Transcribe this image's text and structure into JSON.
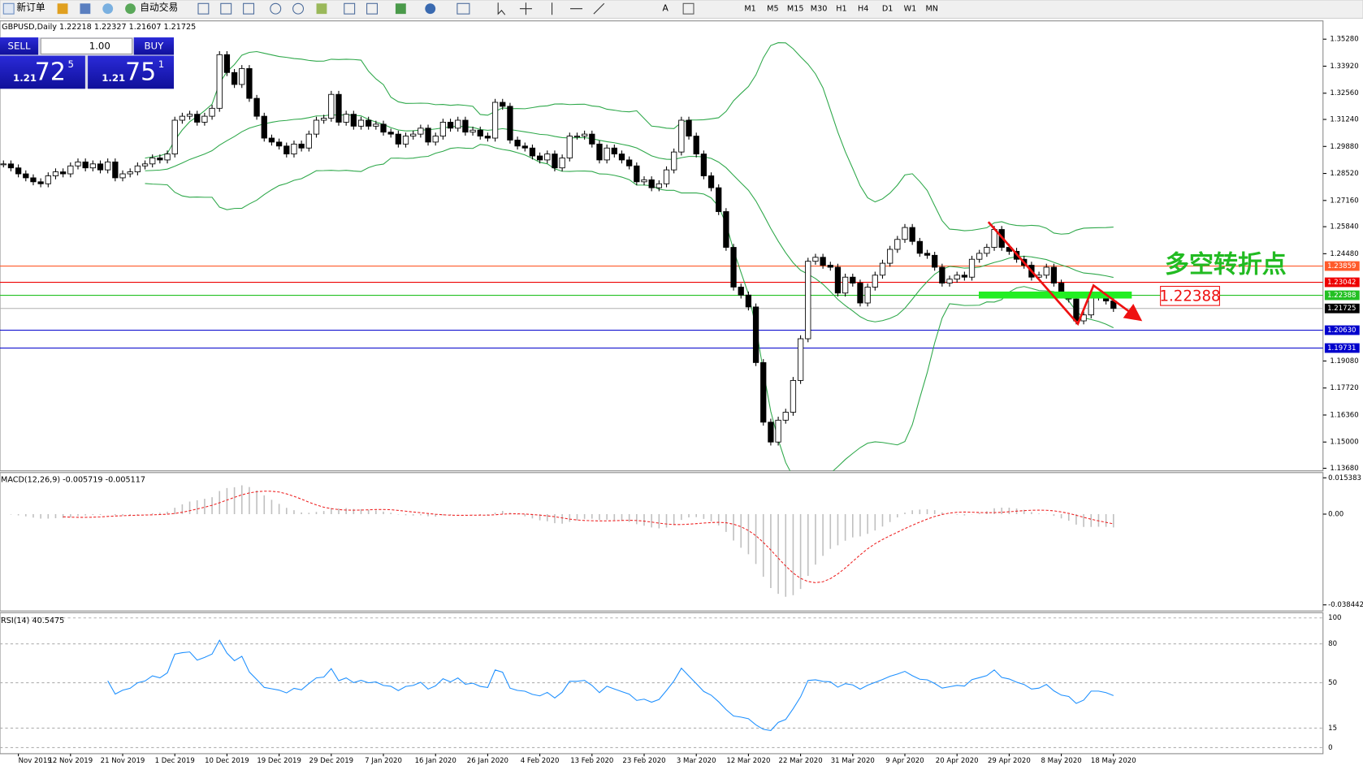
{
  "toolbar": {
    "new_order": "新订单",
    "auto_trading": "自动交易",
    "timeframes": [
      "M1",
      "M5",
      "M15",
      "M30",
      "H1",
      "H4",
      "D1",
      "W1",
      "MN"
    ]
  },
  "trade_panel": {
    "sell": "SELL",
    "buy": "BUY",
    "lot": "1.00",
    "sell_price": {
      "prefix": "1.21",
      "main": "72",
      "sup": "5"
    },
    "buy_price": {
      "prefix": "1.21",
      "main": "75",
      "sup": "1"
    }
  },
  "chart": {
    "label": "GBPUSD,Daily 1.22218 1.22327 1.21607 1.21725",
    "ylim": [
      1.1355,
      1.362
    ],
    "yticks": [
      {
        "value": 1.3528,
        "label": "1.35280"
      },
      {
        "value": 1.3392,
        "label": "1.33920"
      },
      {
        "value": 1.3256,
        "label": "1.32560"
      },
      {
        "value": 1.3124,
        "label": "1.31240"
      },
      {
        "value": 1.2988,
        "label": "1.29880"
      },
      {
        "value": 1.2852,
        "label": "1.28520"
      },
      {
        "value": 1.2716,
        "label": "1.27160"
      },
      {
        "value": 1.2584,
        "label": "1.25840"
      },
      {
        "value": 1.2448,
        "label": "1.24480"
      },
      {
        "value": 1.1908,
        "label": "1.19080"
      },
      {
        "value": 1.1772,
        "label": "1.17720"
      },
      {
        "value": 1.1636,
        "label": "1.16360"
      },
      {
        "value": 1.15,
        "label": "1.15000"
      },
      {
        "value": 1.1368,
        "label": "1.13680"
      }
    ],
    "closes": [
      1.29,
      1.288,
      1.285,
      1.283,
      1.281,
      1.28,
      1.284,
      1.286,
      1.285,
      1.289,
      1.291,
      1.288,
      1.29,
      1.287,
      1.291,
      1.283,
      1.285,
      1.286,
      1.289,
      1.29,
      1.293,
      1.292,
      1.295,
      1.312,
      1.314,
      1.315,
      1.311,
      1.314,
      1.318,
      1.345,
      1.336,
      1.33,
      1.338,
      1.323,
      1.314,
      1.303,
      1.301,
      1.299,
      1.295,
      1.3,
      1.298,
      1.305,
      1.312,
      1.313,
      1.325,
      1.311,
      1.315,
      1.309,
      1.312,
      1.309,
      1.31,
      1.306,
      1.305,
      1.3,
      1.304,
      1.305,
      1.308,
      1.301,
      1.304,
      1.311,
      1.308,
      1.312,
      1.306,
      1.307,
      1.304,
      1.303,
      1.321,
      1.319,
      1.302,
      1.299,
      1.298,
      1.294,
      1.292,
      1.295,
      1.288,
      1.293,
      1.304,
      1.304,
      1.305,
      1.3,
      1.292,
      1.298,
      1.295,
      1.292,
      1.289,
      1.281,
      1.282,
      1.278,
      1.28,
      1.287,
      1.296,
      1.312,
      1.304,
      1.295,
      1.284,
      1.278,
      1.266,
      1.248,
      1.228,
      1.224,
      1.218,
      1.19,
      1.16,
      1.15,
      1.161,
      1.165,
      1.181,
      1.202,
      1.241,
      1.243,
      1.239,
      1.238,
      1.225,
      1.233,
      1.23,
      1.22,
      1.228,
      1.234,
      1.24,
      1.247,
      1.252,
      1.258,
      1.251,
      1.245,
      1.244,
      1.238,
      1.23,
      1.232,
      1.234,
      1.233,
      1.242,
      1.245,
      1.248,
      1.257,
      1.248,
      1.246,
      1.242,
      1.239,
      1.233,
      1.234,
      1.238,
      1.23,
      1.224,
      1.222,
      1.211,
      1.214,
      1.223,
      1.223,
      1.221,
      1.21725
    ],
    "levels": [
      {
        "value": 1.23859,
        "label": "1.23859",
        "color": "#ff5a2a"
      },
      {
        "value": 1.23042,
        "label": "1.23042",
        "color": "#ee0000"
      },
      {
        "value": 1.22388,
        "label": "1.22388",
        "color": "#22c022"
      },
      {
        "value": 1.21725,
        "label": "1.21725",
        "color": "#000000"
      },
      {
        "value": 1.2063,
        "label": "1.20630",
        "color": "#0000cc"
      },
      {
        "value": 1.19731,
        "label": "1.19731",
        "color": "#0000cc"
      }
    ],
    "annotation_title": "多空转折点",
    "annotation_price": {
      "value": 1.22388,
      "label": "1.22388"
    },
    "dates": [
      "Nov 2019",
      "12 Nov 2019",
      "21 Nov 2019",
      "1 Dec 2019",
      "10 Dec 2019",
      "19 Dec 2019",
      "29 Dec 2019",
      "7 Jan 2020",
      "16 Jan 2020",
      "26 Jan 2020",
      "4 Feb 2020",
      "13 Feb 2020",
      "23 Feb 2020",
      "3 Mar 2020",
      "12 Mar 2020",
      "22 Mar 2020",
      "31 Mar 2020",
      "9 Apr 2020",
      "20 Apr 2020",
      "29 Apr 2020",
      "8 May 2020",
      "18 May 2020"
    ]
  },
  "macd": {
    "label": "MACD(12,26,9) -0.005719 -0.005117",
    "ylim": [
      -0.04102,
      0.0176
    ],
    "yticks": [
      {
        "value": 0.015383,
        "label": "0.015383"
      },
      {
        "value": 0,
        "label": "0.00"
      },
      {
        "value": -0.038442,
        "label": "-0.038442"
      }
    ]
  },
  "rsi": {
    "label": "RSI(14) 40.5475",
    "ylim": [
      -4.7,
      104
    ],
    "yticks": [
      100,
      80,
      50,
      15,
      0
    ]
  }
}
